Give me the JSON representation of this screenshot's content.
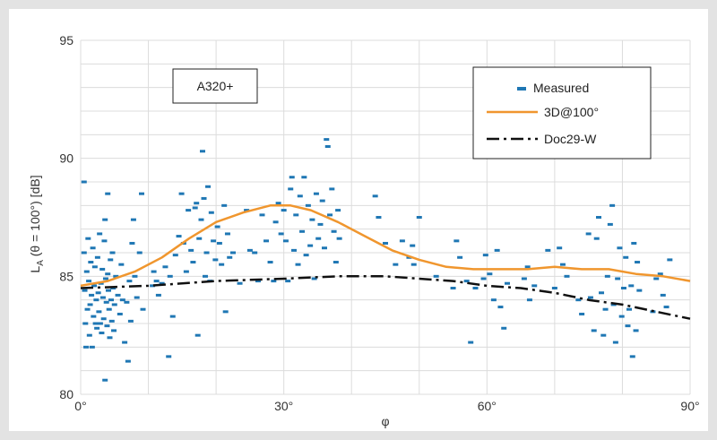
{
  "chart_data": {
    "type": "scatter",
    "annotation": "A320+",
    "ylabel_parts": [
      "L",
      "A",
      " (θ = 100°) [dB]"
    ],
    "xlabel": "φ",
    "xlim": [
      0,
      90
    ],
    "ylim": [
      80,
      95
    ],
    "x_ticks": [
      0,
      30,
      60,
      90
    ],
    "x_tick_labels": [
      "0°",
      "30°",
      "60°",
      "90°"
    ],
    "y_ticks": [
      80,
      85,
      90,
      95
    ],
    "y_tick_labels": [
      "80",
      "85",
      "90",
      "95"
    ],
    "grid": true,
    "legend_position": "top-right",
    "colors": {
      "measured": "#1f77b4",
      "model_3d": "#f0962e",
      "doc29": "#111111"
    },
    "series": [
      {
        "name": "Measured",
        "style": "markers",
        "points": [
          [
            0.5,
            89.0
          ],
          [
            0.5,
            86.0
          ],
          [
            0.6,
            84.4
          ],
          [
            0.7,
            83.0
          ],
          [
            0.8,
            82.0
          ],
          [
            0.9,
            85.2
          ],
          [
            1.0,
            83.6
          ],
          [
            1.1,
            86.6
          ],
          [
            1.2,
            84.8
          ],
          [
            1.3,
            82.5
          ],
          [
            1.4,
            83.8
          ],
          [
            1.5,
            85.6
          ],
          [
            1.6,
            84.2
          ],
          [
            1.7,
            82.0
          ],
          [
            1.8,
            86.2
          ],
          [
            1.9,
            83.3
          ],
          [
            2.0,
            84.6
          ],
          [
            2.1,
            85.4
          ],
          [
            2.2,
            83.0
          ],
          [
            2.3,
            84.0
          ],
          [
            2.4,
            82.8
          ],
          [
            2.5,
            85.8
          ],
          [
            2.6,
            84.3
          ],
          [
            2.7,
            83.5
          ],
          [
            2.8,
            86.8
          ],
          [
            2.9,
            83.0
          ],
          [
            3.0,
            84.7
          ],
          [
            3.1,
            82.6
          ],
          [
            3.2,
            85.3
          ],
          [
            3.3,
            84.1
          ],
          [
            3.4,
            83.2
          ],
          [
            3.5,
            86.5
          ],
          [
            3.6,
            87.4
          ],
          [
            3.6,
            80.6
          ],
          [
            3.7,
            84.9
          ],
          [
            3.8,
            83.9
          ],
          [
            3.9,
            82.9
          ],
          [
            4.0,
            88.5
          ],
          [
            4.0,
            85.1
          ],
          [
            4.1,
            84.4
          ],
          [
            4.2,
            83.6
          ],
          [
            4.3,
            82.4
          ],
          [
            4.4,
            85.7
          ],
          [
            4.5,
            84.0
          ],
          [
            4.6,
            83.1
          ],
          [
            4.7,
            86.0
          ],
          [
            4.8,
            84.5
          ],
          [
            4.9,
            82.7
          ],
          [
            5.0,
            83.8
          ],
          [
            5.2,
            85.0
          ],
          [
            5.5,
            84.2
          ],
          [
            5.8,
            83.4
          ],
          [
            6.0,
            85.5
          ],
          [
            6.2,
            84.0
          ],
          [
            6.5,
            82.2
          ],
          [
            6.8,
            83.9
          ],
          [
            7.0,
            81.4
          ],
          [
            7.2,
            84.8
          ],
          [
            7.4,
            83.1
          ],
          [
            7.6,
            86.4
          ],
          [
            7.8,
            87.4
          ],
          [
            8.0,
            85.0
          ],
          [
            8.3,
            84.1
          ],
          [
            8.7,
            86.0
          ],
          [
            9.0,
            88.5
          ],
          [
            9.2,
            83.6
          ],
          [
            10.6,
            84.6
          ],
          [
            10.8,
            85.2
          ],
          [
            11.2,
            84.8
          ],
          [
            11.5,
            84.2
          ],
          [
            12.0,
            84.7
          ],
          [
            12.5,
            85.4
          ],
          [
            13.0,
            81.6
          ],
          [
            13.2,
            85.0
          ],
          [
            13.6,
            83.3
          ],
          [
            14.0,
            85.9
          ],
          [
            14.5,
            86.7
          ],
          [
            14.9,
            88.5
          ],
          [
            15.2,
            86.4
          ],
          [
            15.6,
            85.2
          ],
          [
            15.9,
            87.8
          ],
          [
            16.3,
            86.1
          ],
          [
            16.6,
            85.6
          ],
          [
            16.9,
            87.9
          ],
          [
            17.1,
            88.1
          ],
          [
            17.3,
            82.5
          ],
          [
            17.5,
            86.6
          ],
          [
            17.8,
            87.4
          ],
          [
            18.0,
            90.3
          ],
          [
            18.2,
            88.3
          ],
          [
            18.4,
            85.0
          ],
          [
            18.6,
            86.0
          ],
          [
            18.8,
            88.8
          ],
          [
            19.1,
            84.8
          ],
          [
            19.3,
            87.7
          ],
          [
            19.6,
            86.5
          ],
          [
            19.9,
            85.7
          ],
          [
            20.2,
            87.1
          ],
          [
            20.5,
            86.4
          ],
          [
            20.8,
            85.5
          ],
          [
            21.2,
            88.0
          ],
          [
            21.4,
            83.5
          ],
          [
            21.7,
            86.8
          ],
          [
            22.0,
            85.8
          ],
          [
            22.5,
            86.0
          ],
          [
            23.5,
            84.7
          ],
          [
            24.5,
            87.8
          ],
          [
            25.0,
            86.1
          ],
          [
            25.7,
            86.0
          ],
          [
            26.2,
            84.8
          ],
          [
            26.8,
            87.6
          ],
          [
            27.4,
            86.5
          ],
          [
            28.0,
            85.6
          ],
          [
            28.5,
            84.8
          ],
          [
            28.8,
            87.3
          ],
          [
            29.2,
            88.1
          ],
          [
            29.6,
            86.8
          ],
          [
            30.0,
            87.8
          ],
          [
            30.3,
            86.5
          ],
          [
            30.6,
            84.8
          ],
          [
            31.0,
            88.7
          ],
          [
            31.2,
            89.2
          ],
          [
            31.5,
            86.1
          ],
          [
            31.8,
            87.6
          ],
          [
            32.1,
            85.5
          ],
          [
            32.4,
            88.4
          ],
          [
            32.7,
            86.9
          ],
          [
            33.0,
            89.2
          ],
          [
            33.3,
            85.9
          ],
          [
            33.6,
            88.0
          ],
          [
            33.9,
            86.3
          ],
          [
            34.2,
            87.4
          ],
          [
            34.5,
            84.9
          ],
          [
            34.8,
            88.5
          ],
          [
            35.1,
            86.6
          ],
          [
            35.4,
            87.2
          ],
          [
            35.7,
            88.2
          ],
          [
            36.0,
            86.2
          ],
          [
            36.3,
            90.8
          ],
          [
            36.5,
            90.5
          ],
          [
            36.8,
            87.6
          ],
          [
            37.1,
            88.7
          ],
          [
            37.4,
            86.9
          ],
          [
            37.7,
            85.6
          ],
          [
            38.0,
            87.8
          ],
          [
            38.2,
            86.6
          ],
          [
            43.5,
            88.4
          ],
          [
            44.0,
            87.5
          ],
          [
            45.0,
            86.4
          ],
          [
            46.5,
            85.5
          ],
          [
            47.5,
            86.5
          ],
          [
            48.5,
            85.8
          ],
          [
            49.0,
            86.3
          ],
          [
            49.2,
            85.5
          ],
          [
            50.0,
            87.5
          ],
          [
            52.5,
            85.0
          ],
          [
            55.0,
            84.5
          ],
          [
            55.5,
            86.5
          ],
          [
            56.0,
            85.8
          ],
          [
            57.0,
            84.8
          ],
          [
            57.6,
            82.2
          ],
          [
            58.3,
            84.5
          ],
          [
            59.5,
            84.9
          ],
          [
            59.8,
            85.9
          ],
          [
            60.4,
            85.1
          ],
          [
            61.0,
            84.0
          ],
          [
            61.5,
            86.1
          ],
          [
            62.0,
            83.7
          ],
          [
            62.5,
            82.8
          ],
          [
            63.0,
            84.7
          ],
          [
            65.5,
            84.9
          ],
          [
            66.0,
            85.4
          ],
          [
            66.3,
            84.0
          ],
          [
            67.0,
            84.6
          ],
          [
            69.0,
            86.1
          ],
          [
            70.0,
            84.5
          ],
          [
            70.7,
            86.2
          ],
          [
            71.2,
            85.5
          ],
          [
            71.8,
            85.0
          ],
          [
            73.5,
            84.0
          ],
          [
            74.0,
            83.4
          ],
          [
            75.0,
            86.8
          ],
          [
            75.3,
            84.1
          ],
          [
            75.8,
            82.7
          ],
          [
            76.2,
            86.6
          ],
          [
            76.5,
            87.5
          ],
          [
            76.9,
            84.3
          ],
          [
            77.2,
            82.5
          ],
          [
            77.5,
            83.6
          ],
          [
            77.8,
            85.0
          ],
          [
            78.2,
            87.2
          ],
          [
            78.5,
            88.0
          ],
          [
            78.7,
            83.8
          ],
          [
            79.0,
            82.2
          ],
          [
            79.3,
            84.9
          ],
          [
            79.6,
            86.2
          ],
          [
            79.9,
            83.3
          ],
          [
            80.2,
            84.5
          ],
          [
            80.5,
            85.8
          ],
          [
            80.8,
            82.9
          ],
          [
            81.0,
            83.6
          ],
          [
            81.3,
            84.6
          ],
          [
            81.5,
            81.6
          ],
          [
            81.7,
            86.4
          ],
          [
            82.0,
            82.7
          ],
          [
            82.2,
            85.6
          ],
          [
            82.5,
            84.4
          ],
          [
            84.5,
            83.5
          ],
          [
            85.0,
            84.9
          ],
          [
            85.6,
            85.1
          ],
          [
            86.0,
            84.2
          ],
          [
            86.5,
            83.7
          ],
          [
            87.0,
            85.7
          ]
        ]
      },
      {
        "name": "3D@100°",
        "style": "line",
        "points": [
          [
            0,
            84.6
          ],
          [
            4,
            84.8
          ],
          [
            8,
            85.2
          ],
          [
            12,
            85.8
          ],
          [
            16,
            86.6
          ],
          [
            20,
            87.3
          ],
          [
            24,
            87.7
          ],
          [
            28,
            88.0
          ],
          [
            31,
            88.0
          ],
          [
            34,
            87.8
          ],
          [
            38,
            87.3
          ],
          [
            42,
            86.7
          ],
          [
            46,
            86.1
          ],
          [
            50,
            85.7
          ],
          [
            54,
            85.4
          ],
          [
            58,
            85.3
          ],
          [
            62,
            85.3
          ],
          [
            66,
            85.3
          ],
          [
            70,
            85.4
          ],
          [
            74,
            85.3
          ],
          [
            78,
            85.3
          ],
          [
            82,
            85.1
          ],
          [
            86,
            85.0
          ],
          [
            90,
            84.8
          ]
        ]
      },
      {
        "name": "Doc29-W",
        "style": "dashdot",
        "points": [
          [
            0,
            84.5
          ],
          [
            10,
            84.6
          ],
          [
            20,
            84.8
          ],
          [
            30,
            84.9
          ],
          [
            38,
            85.0
          ],
          [
            45,
            85.0
          ],
          [
            50,
            84.9
          ],
          [
            55,
            84.8
          ],
          [
            60,
            84.6
          ],
          [
            65,
            84.5
          ],
          [
            70,
            84.3
          ],
          [
            75,
            84.0
          ],
          [
            80,
            83.8
          ],
          [
            85,
            83.5
          ],
          [
            90,
            83.2
          ]
        ]
      }
    ]
  }
}
